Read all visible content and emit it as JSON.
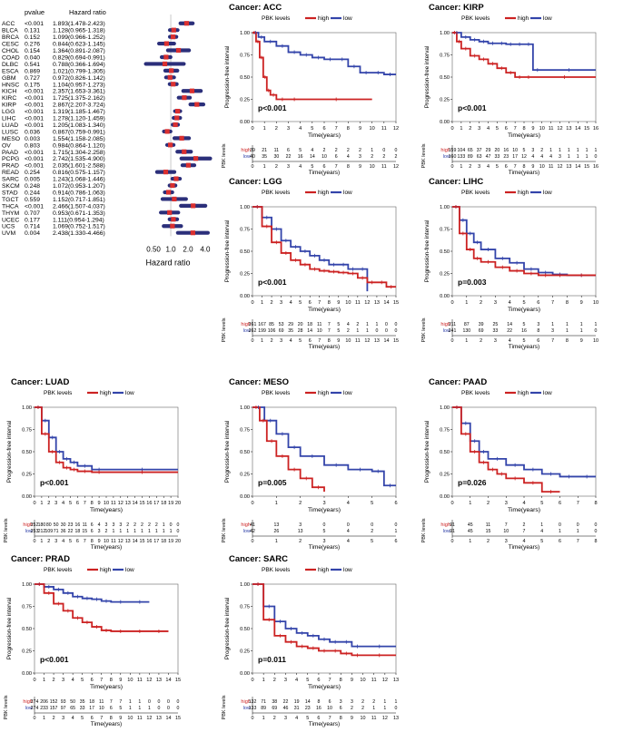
{
  "forest": {
    "header_pvalue": "pvalue",
    "header_hr": "Hazard ratio",
    "xlabel": "Hazard ratio",
    "ticks": [
      "0.50",
      "1.0",
      "2.0",
      "4.0"
    ],
    "scale": "log",
    "xlim": [
      0.4,
      5.0
    ],
    "rows": [
      {
        "cancer": "ACC",
        "p": "<0.001",
        "hr_text": "1.893(1.478-2.423)",
        "hr": 1.893,
        "lo": 1.478,
        "hi": 2.423
      },
      {
        "cancer": "BLCA",
        "p": "0.131",
        "hr_text": "1.128(0.965-1.318)",
        "hr": 1.128,
        "lo": 0.965,
        "hi": 1.318
      },
      {
        "cancer": "BRCA",
        "p": "0.152",
        "hr_text": "1.099(0.966-1.252)",
        "hr": 1.099,
        "lo": 0.966,
        "hi": 1.252
      },
      {
        "cancer": "CESC",
        "p": "0.276",
        "hr_text": "0.844(0.623-1.145)",
        "hr": 0.844,
        "lo": 0.623,
        "hi": 1.145
      },
      {
        "cancer": "CHOL",
        "p": "0.154",
        "hr_text": "1.364(0.891-2.087)",
        "hr": 1.364,
        "lo": 0.891,
        "hi": 2.087
      },
      {
        "cancer": "COAD",
        "p": "0.040",
        "hr_text": "0.829(0.694-0.991)",
        "hr": 0.829,
        "lo": 0.694,
        "hi": 0.991
      },
      {
        "cancer": "DLBC",
        "p": "0.541",
        "hr_text": "0.788(0.366-1.694)",
        "hr": 0.788,
        "lo": 0.366,
        "hi": 1.694
      },
      {
        "cancer": "ESCA",
        "p": "0.869",
        "hr_text": "1.021(0.799-1.305)",
        "hr": 1.021,
        "lo": 0.799,
        "hi": 1.305
      },
      {
        "cancer": "GBM",
        "p": "0.727",
        "hr_text": "0.972(0.826-1.142)",
        "hr": 0.972,
        "lo": 0.826,
        "hi": 1.142
      },
      {
        "cancer": "HNSC",
        "p": "0.175",
        "hr_text": "1.104(0.957-1.273)",
        "hr": 1.104,
        "lo": 0.957,
        "hi": 1.273
      },
      {
        "cancer": "KICH",
        "p": "<0.001",
        "hr_text": "2.357(1.653-3.361)",
        "hr": 2.357,
        "lo": 1.653,
        "hi": 3.361
      },
      {
        "cancer": "KIRC",
        "p": "<0.001",
        "hr_text": "1.725(1.375-2.162)",
        "hr": 1.725,
        "lo": 1.375,
        "hi": 2.162
      },
      {
        "cancer": "KIRP",
        "p": "<0.001",
        "hr_text": "2.867(2.207-3.724)",
        "hr": 2.867,
        "lo": 2.207,
        "hi": 3.724
      },
      {
        "cancer": "LGG",
        "p": "<0.001",
        "hr_text": "1.319(1.185-1.467)",
        "hr": 1.319,
        "lo": 1.185,
        "hi": 1.467
      },
      {
        "cancer": "LIHC",
        "p": "<0.001",
        "hr_text": "1.278(1.120-1.459)",
        "hr": 1.278,
        "lo": 1.12,
        "hi": 1.459
      },
      {
        "cancer": "LUAD",
        "p": "<0.001",
        "hr_text": "1.205(1.083-1.340)",
        "hr": 1.205,
        "lo": 1.083,
        "hi": 1.34
      },
      {
        "cancer": "LUSC",
        "p": "0.036",
        "hr_text": "0.867(0.759-0.991)",
        "hr": 0.867,
        "lo": 0.759,
        "hi": 0.991
      },
      {
        "cancer": "MESO",
        "p": "0.003",
        "hr_text": "1.554(1.158-2.085)",
        "hr": 1.554,
        "lo": 1.158,
        "hi": 2.085
      },
      {
        "cancer": "OV",
        "p": "0.803",
        "hr_text": "0.984(0.864-1.120)",
        "hr": 0.984,
        "lo": 0.864,
        "hi": 1.12
      },
      {
        "cancer": "PAAD",
        "p": "<0.001",
        "hr_text": "1.715(1.304-2.258)",
        "hr": 1.715,
        "lo": 1.304,
        "hi": 2.258
      },
      {
        "cancer": "PCPG",
        "p": "<0.001",
        "hr_text": "2.742(1.535-4.900)",
        "hr": 2.742,
        "lo": 1.535,
        "hi": 4.9
      },
      {
        "cancer": "PRAD",
        "p": "<0.001",
        "hr_text": "2.035(1.601-2.588)",
        "hr": 2.035,
        "lo": 1.601,
        "hi": 2.588
      },
      {
        "cancer": "READ",
        "p": "0.254",
        "hr_text": "0.816(0.575-1.157)",
        "hr": 0.816,
        "lo": 0.575,
        "hi": 1.157
      },
      {
        "cancer": "SARC",
        "p": "0.005",
        "hr_text": "1.243(1.068-1.446)",
        "hr": 1.243,
        "lo": 1.068,
        "hi": 1.446
      },
      {
        "cancer": "SKCM",
        "p": "0.248",
        "hr_text": "1.072(0.953-1.207)",
        "hr": 1.072,
        "lo": 0.953,
        "hi": 1.207
      },
      {
        "cancer": "STAD",
        "p": "0.244",
        "hr_text": "0.914(0.786-1.063)",
        "hr": 0.914,
        "lo": 0.786,
        "hi": 1.063
      },
      {
        "cancer": "TGCT",
        "p": "0.559",
        "hr_text": "1.152(0.717-1.851)",
        "hr": 1.152,
        "lo": 0.717,
        "hi": 1.851
      },
      {
        "cancer": "THCA",
        "p": "<0.001",
        "hr_text": "2.466(1.507-4.037)",
        "hr": 2.466,
        "lo": 1.507,
        "hi": 4.037
      },
      {
        "cancer": "THYM",
        "p": "0.707",
        "hr_text": "0.953(0.671-1.353)",
        "hr": 0.953,
        "lo": 0.671,
        "hi": 1.353
      },
      {
        "cancer": "UCEC",
        "p": "0.177",
        "hr_text": "1.111(0.954-1.294)",
        "hr": 1.111,
        "lo": 0.954,
        "hi": 1.294
      },
      {
        "cancer": "UCS",
        "p": "0.714",
        "hr_text": "1.069(0.752-1.517)",
        "hr": 1.069,
        "lo": 0.752,
        "hi": 1.517
      },
      {
        "cancer": "UVM",
        "p": "0.004",
        "hr_text": "2.438(1.330-4.466)",
        "hr": 2.438,
        "lo": 1.33,
        "hi": 4.466
      }
    ]
  },
  "colors": {
    "high": "#cc2222",
    "low": "#3344aa",
    "forest_bar": "#2b2f7a",
    "forest_point": "#d93030"
  },
  "common": {
    "legend_title": "PBK levels",
    "legend_high": "high",
    "legend_low": "low",
    "ylabel": "Progression-free interval",
    "xlabel": "Time(years)",
    "risk_ylabel": "PBK levels",
    "risk_high": "high",
    "risk_low": "low",
    "yticks": [
      "0.00",
      "0.25",
      "0.50",
      "0.75",
      "1.00"
    ]
  },
  "chart_data": [
    {
      "type": "forest",
      "title": "",
      "scale": "log",
      "x": [
        1.893,
        1.128,
        1.099,
        0.844,
        1.364,
        0.829,
        0.788,
        1.021,
        0.972,
        1.104,
        2.357,
        1.725,
        2.867,
        1.319,
        1.278,
        1.205,
        0.867,
        1.554,
        0.984,
        1.715,
        2.742,
        2.035,
        0.816,
        1.243,
        1.072,
        0.914,
        1.152,
        2.466,
        0.953,
        1.111,
        1.069,
        2.438
      ],
      "xlabel": "Hazard ratio"
    },
    {
      "type": "line",
      "title": "Cancer: ACC",
      "xmax": 12,
      "pvalue": "p<0.001",
      "pval_pos": "lower-left",
      "high_x": [
        0,
        0.3,
        0.6,
        0.9,
        1.2,
        1.5,
        2,
        3,
        4,
        10
      ],
      "high_y": [
        1.0,
        0.9,
        0.72,
        0.5,
        0.35,
        0.3,
        0.25,
        0.25,
        0.25,
        0.25
      ],
      "low_x": [
        0,
        0.5,
        1,
        2,
        3,
        4,
        5,
        6,
        7,
        8,
        9,
        10,
        11,
        12
      ],
      "low_y": [
        1.0,
        0.95,
        0.9,
        0.85,
        0.78,
        0.75,
        0.72,
        0.7,
        0.7,
        0.62,
        0.55,
        0.55,
        0.53,
        0.53
      ],
      "risk_high": [
        "39",
        "21",
        "11",
        "6",
        "5",
        "4",
        "2",
        "2",
        "2",
        "2",
        "1",
        "0",
        "0"
      ],
      "risk_low": [
        "40",
        "35",
        "30",
        "22",
        "16",
        "14",
        "10",
        "6",
        "4",
        "3",
        "2",
        "2",
        "2"
      ]
    },
    {
      "type": "line",
      "title": "Cancer: KIRP",
      "xmax": 16,
      "pvalue": "p<0.001",
      "pval_pos": "lower-left",
      "high_x": [
        0,
        0.5,
        1,
        2,
        3,
        4,
        5,
        6,
        7,
        8,
        9,
        16
      ],
      "high_y": [
        1.0,
        0.9,
        0.82,
        0.74,
        0.7,
        0.65,
        0.6,
        0.55,
        0.5,
        0.5,
        0.5,
        0.5
      ],
      "low_x": [
        0,
        1,
        2,
        3,
        4,
        5,
        6,
        7,
        8,
        9,
        10,
        16
      ],
      "low_y": [
        1.0,
        0.95,
        0.92,
        0.9,
        0.88,
        0.88,
        0.87,
        0.87,
        0.87,
        0.58,
        0.58,
        0.58
      ],
      "risk_high": [
        "159",
        "104",
        "65",
        "37",
        "29",
        "20",
        "16",
        "10",
        "5",
        "3",
        "2",
        "1",
        "1",
        "1",
        "1",
        "1",
        "1"
      ],
      "risk_low": [
        "160",
        "133",
        "89",
        "63",
        "47",
        "33",
        "23",
        "17",
        "12",
        "4",
        "4",
        "4",
        "3",
        "1",
        "1",
        "1",
        "0"
      ]
    },
    {
      "type": "line",
      "title": "Cancer: LGG",
      "xmax": 15,
      "pvalue": "p<0.001",
      "pval_pos": "lower-left",
      "high_x": [
        0,
        1,
        2,
        3,
        4,
        5,
        6,
        7,
        8,
        9,
        10,
        11,
        12,
        13,
        14,
        15
      ],
      "high_y": [
        1.0,
        0.78,
        0.6,
        0.48,
        0.4,
        0.35,
        0.3,
        0.28,
        0.27,
        0.26,
        0.25,
        0.2,
        0.15,
        0.15,
        0.1,
        0.1
      ],
      "low_x": [
        0,
        1,
        2,
        3,
        4,
        5,
        6,
        7,
        8,
        9,
        10,
        11,
        12
      ],
      "low_y": [
        1.0,
        0.88,
        0.75,
        0.62,
        0.55,
        0.5,
        0.45,
        0.4,
        0.35,
        0.35,
        0.3,
        0.3,
        0.05
      ],
      "risk_high": [
        "261",
        "167",
        "85",
        "53",
        "29",
        "20",
        "18",
        "11",
        "7",
        "5",
        "4",
        "2",
        "1",
        "1",
        "0",
        "0"
      ],
      "risk_low": [
        "262",
        "199",
        "106",
        "69",
        "35",
        "28",
        "14",
        "10",
        "7",
        "5",
        "2",
        "1",
        "1",
        "0",
        "0",
        "0"
      ]
    },
    {
      "type": "line",
      "title": "Cancer: LIHC",
      "xmax": 10,
      "pvalue": "p=0.003",
      "pval_pos": "lower-left",
      "high_x": [
        0,
        0.5,
        1,
        1.5,
        2,
        3,
        4,
        5,
        6,
        7,
        8,
        10
      ],
      "high_y": [
        1.0,
        0.7,
        0.52,
        0.42,
        0.38,
        0.32,
        0.28,
        0.25,
        0.23,
        0.23,
        0.23,
        0.23
      ],
      "low_x": [
        0,
        0.5,
        1,
        1.5,
        2,
        3,
        4,
        5,
        6,
        7,
        8,
        10
      ],
      "low_y": [
        1.0,
        0.85,
        0.7,
        0.6,
        0.52,
        0.42,
        0.37,
        0.3,
        0.26,
        0.24,
        0.23,
        0.23
      ],
      "risk_high": [
        "211",
        "87",
        "39",
        "25",
        "14",
        "5",
        "3",
        "1",
        "1",
        "1",
        "1"
      ],
      "risk_low": [
        "241",
        "130",
        "69",
        "33",
        "22",
        "16",
        "8",
        "3",
        "1",
        "1",
        "0"
      ]
    },
    {
      "type": "line",
      "title": "Cancer: LUAD",
      "xmax": 20,
      "pvalue": "p<0.001",
      "pval_pos": "lower-left",
      "high_x": [
        0,
        1,
        2,
        3,
        4,
        5,
        6,
        8,
        10,
        20
      ],
      "high_y": [
        1.0,
        0.7,
        0.5,
        0.38,
        0.32,
        0.3,
        0.28,
        0.27,
        0.27,
        0.27
      ],
      "low_x": [
        0,
        1,
        2,
        3,
        4,
        5,
        6,
        8,
        10,
        20
      ],
      "low_y": [
        1.0,
        0.85,
        0.66,
        0.5,
        0.42,
        0.38,
        0.34,
        0.3,
        0.3,
        0.3
      ],
      "risk_high": [
        "252",
        "180",
        "80",
        "50",
        "30",
        "23",
        "16",
        "11",
        "6",
        "4",
        "3",
        "3",
        "3",
        "2",
        "2",
        "2",
        "2",
        "2",
        "1",
        "0",
        "0"
      ],
      "risk_low": [
        "253",
        "212",
        "109",
        "71",
        "36",
        "22",
        "18",
        "15",
        "6",
        "3",
        "2",
        "1",
        "1",
        "1",
        "1",
        "1",
        "1",
        "1",
        "1",
        "1",
        "0"
      ]
    },
    {
      "type": "line",
      "title": "Cancer: MESO",
      "xmax": 6,
      "pvalue": "p=0.005",
      "pval_pos": "lower-left",
      "high_x": [
        0,
        0.3,
        0.6,
        1,
        1.5,
        2,
        2.5,
        3
      ],
      "high_y": [
        1.0,
        0.85,
        0.62,
        0.45,
        0.3,
        0.2,
        0.1,
        0.05
      ],
      "low_x": [
        0,
        0.5,
        1,
        1.5,
        2,
        3,
        4,
        5,
        5.5,
        6
      ],
      "low_y": [
        1.0,
        0.85,
        0.7,
        0.55,
        0.45,
        0.35,
        0.3,
        0.28,
        0.12,
        0.12
      ],
      "risk_high": [
        "41",
        "13",
        "3",
        "0",
        "0",
        "0",
        "0"
      ],
      "risk_low": [
        "42",
        "26",
        "13",
        "5",
        "4",
        "2",
        "1"
      ]
    },
    {
      "type": "line",
      "title": "Cancer: PAAD",
      "xmax": 8,
      "pvalue": "p=0.026",
      "pval_pos": "lower-left",
      "high_x": [
        0,
        0.5,
        1,
        1.5,
        2,
        2.5,
        3,
        4,
        5,
        6
      ],
      "high_y": [
        1.0,
        0.7,
        0.5,
        0.38,
        0.3,
        0.25,
        0.2,
        0.15,
        0.05,
        0.05
      ],
      "low_x": [
        0,
        0.5,
        1,
        1.5,
        2,
        3,
        4,
        5,
        6,
        7,
        8
      ],
      "low_y": [
        1.0,
        0.82,
        0.62,
        0.5,
        0.42,
        0.35,
        0.3,
        0.25,
        0.22,
        0.22,
        0.22
      ],
      "risk_high": [
        "91",
        "45",
        "11",
        "7",
        "2",
        "1",
        "0",
        "0",
        "0"
      ],
      "risk_low": [
        "91",
        "45",
        "15",
        "10",
        "7",
        "4",
        "1",
        "1",
        "0"
      ]
    },
    {
      "type": "line",
      "title": "Cancer: PRAD",
      "xmax": 15,
      "pvalue": "p<0.001",
      "pval_pos": "lower-left",
      "high_x": [
        0,
        1,
        2,
        3,
        4,
        5,
        6,
        7,
        8,
        10,
        12,
        14
      ],
      "high_y": [
        1.0,
        0.9,
        0.78,
        0.7,
        0.62,
        0.57,
        0.52,
        0.48,
        0.47,
        0.47,
        0.47,
        0.47
      ],
      "low_x": [
        0,
        1,
        2,
        3,
        4,
        5,
        6,
        7,
        8,
        10,
        12
      ],
      "low_y": [
        1.0,
        0.97,
        0.94,
        0.9,
        0.86,
        0.84,
        0.83,
        0.81,
        0.8,
        0.8,
        0.8
      ],
      "risk_high": [
        "274",
        "206",
        "152",
        "93",
        "50",
        "35",
        "18",
        "11",
        "7",
        "7",
        "1",
        "1",
        "0",
        "0",
        "0",
        "0"
      ],
      "risk_low": [
        "274",
        "233",
        "157",
        "97",
        "65",
        "33",
        "17",
        "10",
        "6",
        "5",
        "1",
        "1",
        "1",
        "0",
        "0",
        "0"
      ]
    },
    {
      "type": "line",
      "title": "Cancer: SARC",
      "xmax": 13,
      "pvalue": "p=0.011",
      "pval_pos": "lower-left",
      "high_x": [
        0,
        1,
        2,
        3,
        4,
        5,
        6,
        7,
        8,
        9,
        10,
        13
      ],
      "high_y": [
        1.0,
        0.6,
        0.42,
        0.35,
        0.3,
        0.28,
        0.25,
        0.25,
        0.22,
        0.2,
        0.2,
        0.2
      ],
      "low_x": [
        0,
        1,
        2,
        3,
        4,
        5,
        6,
        7,
        8,
        9,
        10,
        13
      ],
      "low_y": [
        1.0,
        0.75,
        0.58,
        0.5,
        0.45,
        0.42,
        0.38,
        0.35,
        0.35,
        0.3,
        0.3,
        0.3
      ],
      "risk_high": [
        "132",
        "71",
        "38",
        "22",
        "19",
        "14",
        "8",
        "6",
        "3",
        "3",
        "2",
        "2",
        "1",
        "1"
      ],
      "risk_low": [
        "133",
        "89",
        "69",
        "46",
        "31",
        "23",
        "16",
        "10",
        "6",
        "2",
        "2",
        "1",
        "1",
        "0"
      ]
    }
  ]
}
